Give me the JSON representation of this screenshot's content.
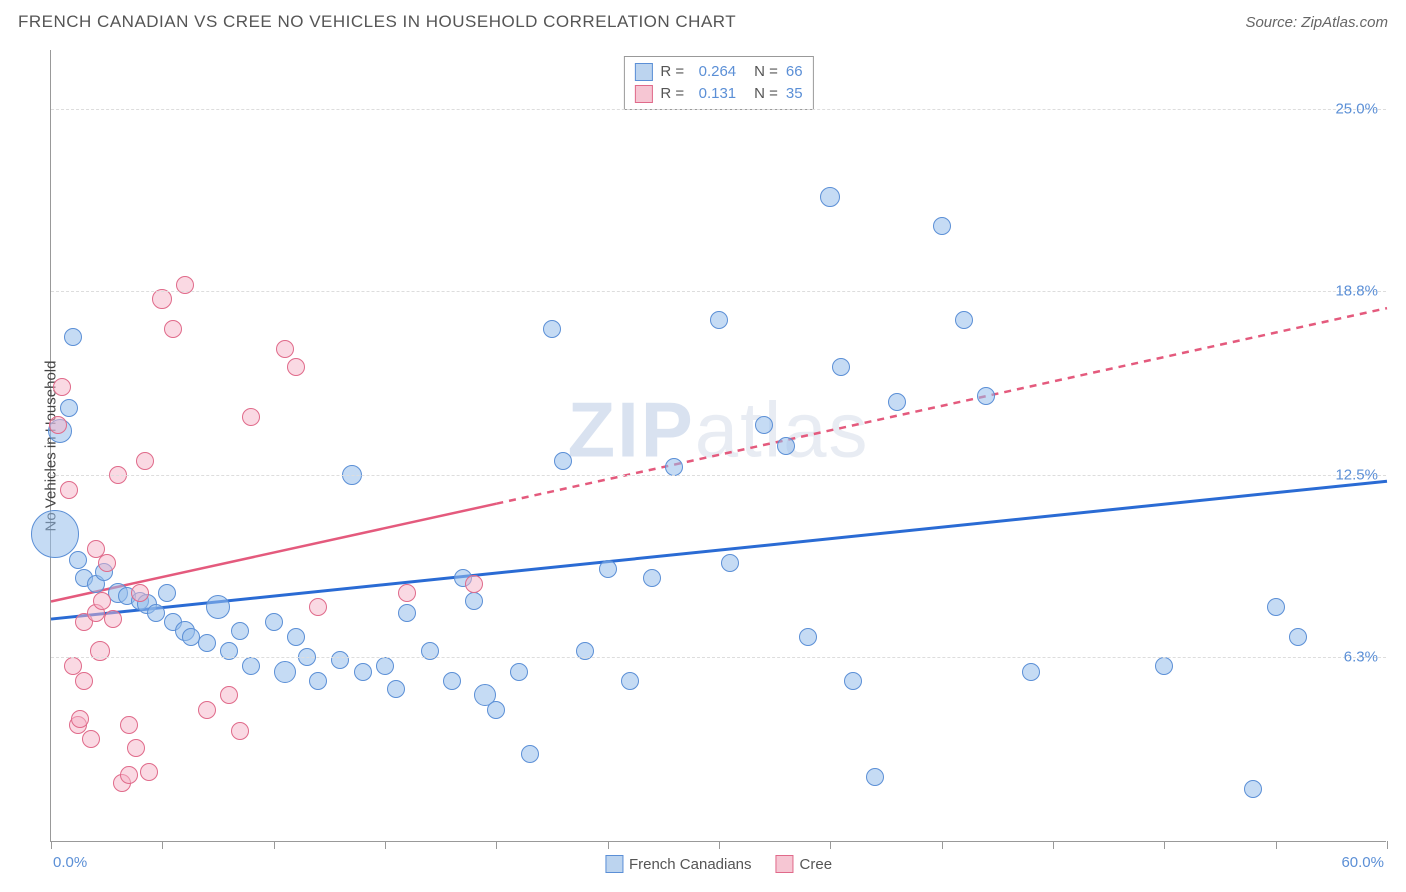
{
  "header": {
    "title": "FRENCH CANADIAN VS CREE NO VEHICLES IN HOUSEHOLD CORRELATION CHART",
    "source": "Source: ZipAtlas.com"
  },
  "watermark": {
    "bold": "ZIP",
    "light": "atlas"
  },
  "axes": {
    "ylabel": "No Vehicles in Household",
    "x_min": 0.0,
    "x_max": 60.0,
    "y_min": 0.0,
    "y_max": 27.0,
    "y_ticks": [
      6.3,
      12.5,
      18.8,
      25.0
    ],
    "x_tick_spacing": 5.0,
    "x_start_label": "0.0%",
    "x_end_label": "60.0%",
    "grid_color": "#dddddd",
    "axis_color": "#999999",
    "tick_label_color": "#5b8fd6",
    "axis_label_color": "#444444",
    "axis_label_fontsize": 15
  },
  "correlation_box": {
    "rows": [
      {
        "swatch_fill": "#bcd4ef",
        "swatch_border": "#5b8fd6",
        "r_label": "R =",
        "r": "0.264",
        "n_label": "N =",
        "n": "66"
      },
      {
        "swatch_fill": "#f6c6d3",
        "swatch_border": "#e06a8a",
        "r_label": "R =",
        "r": "0.131",
        "n_label": "N =",
        "n": "35"
      }
    ]
  },
  "legend": {
    "items": [
      {
        "label": "French Canadians",
        "swatch_fill": "#bcd4ef",
        "swatch_border": "#5b8fd6"
      },
      {
        "label": "Cree",
        "swatch_fill": "#f6c6d3",
        "swatch_border": "#e06a8a"
      }
    ]
  },
  "series": [
    {
      "name": "french_canadians",
      "marker_fill": "rgba(150,190,235,0.55)",
      "marker_stroke": "#5b8fd6",
      "marker_radius": 9,
      "trend": {
        "color": "#2a6bd4",
        "width": 3,
        "x1": 0,
        "y1": 7.6,
        "x2": 60,
        "y2": 12.3,
        "dash": null
      },
      "points": [
        [
          0.2,
          10.5,
          24
        ],
        [
          1.0,
          17.2,
          9
        ],
        [
          0.8,
          14.8,
          9
        ],
        [
          0.4,
          14.0,
          12
        ],
        [
          1.2,
          9.6,
          9
        ],
        [
          1.5,
          9.0,
          9
        ],
        [
          2.0,
          8.8,
          9
        ],
        [
          2.4,
          9.2,
          9
        ],
        [
          3.0,
          8.5,
          10
        ],
        [
          3.4,
          8.4,
          9
        ],
        [
          4.0,
          8.2,
          9
        ],
        [
          4.3,
          8.1,
          10
        ],
        [
          4.7,
          7.8,
          9
        ],
        [
          5.2,
          8.5,
          9
        ],
        [
          5.5,
          7.5,
          9
        ],
        [
          6.0,
          7.2,
          10
        ],
        [
          6.3,
          7.0,
          9
        ],
        [
          7.0,
          6.8,
          9
        ],
        [
          7.5,
          8.0,
          12
        ],
        [
          8.0,
          6.5,
          9
        ],
        [
          8.5,
          7.2,
          9
        ],
        [
          9.0,
          6.0,
          9
        ],
        [
          10.0,
          7.5,
          9
        ],
        [
          10.5,
          5.8,
          11
        ],
        [
          11.0,
          7.0,
          9
        ],
        [
          11.5,
          6.3,
          9
        ],
        [
          12.0,
          5.5,
          9
        ],
        [
          13.0,
          6.2,
          9
        ],
        [
          13.5,
          12.5,
          10
        ],
        [
          14.0,
          5.8,
          9
        ],
        [
          15.0,
          6.0,
          9
        ],
        [
          15.5,
          5.2,
          9
        ],
        [
          16.0,
          7.8,
          9
        ],
        [
          17.0,
          6.5,
          9
        ],
        [
          18.0,
          5.5,
          9
        ],
        [
          18.5,
          9.0,
          9
        ],
        [
          19.0,
          8.2,
          9
        ],
        [
          19.5,
          5.0,
          11
        ],
        [
          20.0,
          4.5,
          9
        ],
        [
          21.0,
          5.8,
          9
        ],
        [
          21.5,
          3.0,
          9
        ],
        [
          22.5,
          17.5,
          9
        ],
        [
          23.0,
          13.0,
          9
        ],
        [
          24.0,
          6.5,
          9
        ],
        [
          25.0,
          9.3,
          9
        ],
        [
          26.0,
          5.5,
          9
        ],
        [
          27.0,
          9.0,
          9
        ],
        [
          28.0,
          12.8,
          9
        ],
        [
          30.0,
          17.8,
          9
        ],
        [
          30.5,
          9.5,
          9
        ],
        [
          32.0,
          14.2,
          9
        ],
        [
          33.0,
          13.5,
          9
        ],
        [
          34.0,
          7.0,
          9
        ],
        [
          35.0,
          22.0,
          10
        ],
        [
          35.5,
          16.2,
          9
        ],
        [
          36.0,
          5.5,
          9
        ],
        [
          37.0,
          2.2,
          9
        ],
        [
          38.0,
          15.0,
          9
        ],
        [
          40.0,
          21.0,
          9
        ],
        [
          41.0,
          17.8,
          9
        ],
        [
          42.0,
          15.2,
          9
        ],
        [
          44.0,
          5.8,
          9
        ],
        [
          50.0,
          6.0,
          9
        ],
        [
          54.0,
          1.8,
          9
        ],
        [
          55.0,
          8.0,
          9
        ],
        [
          56.0,
          7.0,
          9
        ]
      ]
    },
    {
      "name": "cree",
      "marker_fill": "rgba(245,180,200,0.5)",
      "marker_stroke": "#e06a8a",
      "marker_radius": 9,
      "trend": {
        "color": "#e45a7d",
        "width": 2.5,
        "x1": 0,
        "y1": 8.2,
        "x2": 60,
        "y2": 18.2,
        "dash": "7 6",
        "solid_until_x": 20
      },
      "points": [
        [
          0.5,
          15.5,
          9
        ],
        [
          0.3,
          14.2,
          9
        ],
        [
          0.8,
          12.0,
          9
        ],
        [
          1.0,
          6.0,
          9
        ],
        [
          1.2,
          4.0,
          9
        ],
        [
          1.3,
          4.2,
          9
        ],
        [
          1.5,
          5.5,
          9
        ],
        [
          1.5,
          7.5,
          9
        ],
        [
          1.8,
          3.5,
          9
        ],
        [
          2.0,
          10.0,
          9
        ],
        [
          2.0,
          7.8,
          9
        ],
        [
          2.2,
          6.5,
          10
        ],
        [
          2.3,
          8.2,
          9
        ],
        [
          2.5,
          9.5,
          9
        ],
        [
          2.8,
          7.6,
          9
        ],
        [
          3.0,
          12.5,
          9
        ],
        [
          3.2,
          2.0,
          9
        ],
        [
          3.5,
          4.0,
          9
        ],
        [
          3.5,
          2.3,
          9
        ],
        [
          3.8,
          3.2,
          9
        ],
        [
          4.0,
          8.5,
          9
        ],
        [
          4.2,
          13.0,
          9
        ],
        [
          4.4,
          2.4,
          9
        ],
        [
          5.0,
          18.5,
          10
        ],
        [
          5.5,
          17.5,
          9
        ],
        [
          6.0,
          19.0,
          9
        ],
        [
          7.0,
          4.5,
          9
        ],
        [
          8.0,
          5.0,
          9
        ],
        [
          8.5,
          3.8,
          9
        ],
        [
          9.0,
          14.5,
          9
        ],
        [
          10.5,
          16.8,
          9
        ],
        [
          11.0,
          16.2,
          9
        ],
        [
          12.0,
          8.0,
          9
        ],
        [
          16.0,
          8.5,
          9
        ],
        [
          19.0,
          8.8,
          9
        ]
      ]
    }
  ]
}
